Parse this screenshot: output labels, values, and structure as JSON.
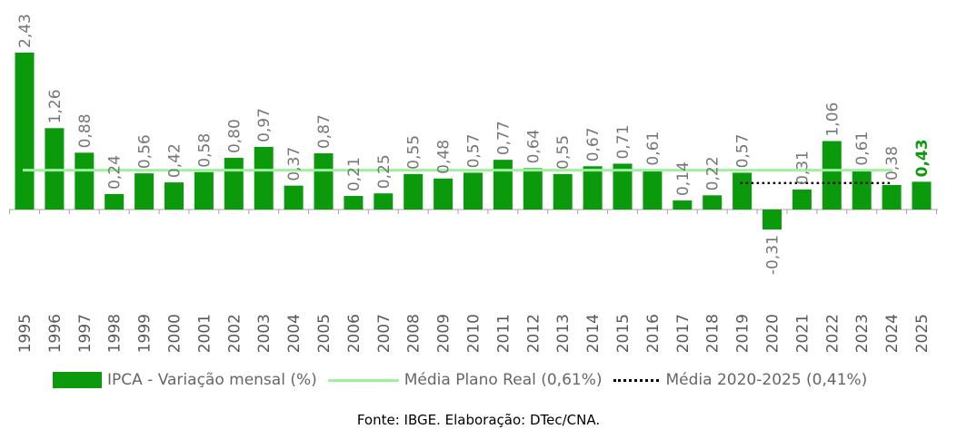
{
  "chart_data": {
    "type": "bar",
    "categories": [
      "1995",
      "1996",
      "1997",
      "1998",
      "1999",
      "2000",
      "2001",
      "2002",
      "2003",
      "2004",
      "2005",
      "2006",
      "2007",
      "2008",
      "2009",
      "2010",
      "2011",
      "2012",
      "2013",
      "2014",
      "2015",
      "2016",
      "2017",
      "2018",
      "2019",
      "2020",
      "2021",
      "2022",
      "2023",
      "2024",
      "2025"
    ],
    "values": [
      2.43,
      1.26,
      0.88,
      0.24,
      0.56,
      0.42,
      0.58,
      0.8,
      0.97,
      0.37,
      0.87,
      0.21,
      0.25,
      0.55,
      0.48,
      0.57,
      0.77,
      0.64,
      0.55,
      0.67,
      0.71,
      0.61,
      0.14,
      0.22,
      0.57,
      -0.31,
      0.31,
      1.06,
      0.61,
      0.38,
      0.43
    ],
    "value_labels": [
      "2,43",
      "1,26",
      "0,88",
      "0,24",
      "0,56",
      "0,42",
      "0,58",
      "0,80",
      "0,97",
      "0,37",
      "0,87",
      "0,21",
      "0,25",
      "0,55",
      "0,48",
      "0,57",
      "0,77",
      "0,64",
      "0,55",
      "0,67",
      "0,71",
      "0,61",
      "0,14",
      "0,22",
      "0,57",
      "-0,31",
      "0,31",
      "1,06",
      "0,61",
      "0,38",
      "0,43"
    ],
    "highlight_index": 30,
    "series": [
      {
        "name": "IPCA - Variação mensal (%)",
        "kind": "bar",
        "color": "#0b9a0b"
      },
      {
        "name": "Média Plano Real (0,61%)",
        "kind": "line",
        "value": 0.61,
        "span": [
          0,
          29
        ],
        "color": "#9ff09f"
      },
      {
        "name": "Média 2020-2025 (0,41%)",
        "kind": "dotted-line",
        "value": 0.41,
        "span": [
          24,
          29
        ],
        "color": "#000000"
      }
    ],
    "colors": {
      "bar": "#0b9a0b",
      "label": "#767676",
      "highlight_label": "#0b9a0b",
      "axis": "#a6a6a6"
    },
    "grid": false,
    "legend_position": "bottom"
  },
  "legend": {
    "bar_label": "IPCA - Variação mensal (%)",
    "line_label": "Média Plano Real (0,61%)",
    "dotted_label": "Média 2020-2025 (0,41%)"
  },
  "source": "Fonte: IBGE. Elaboração: DTec/CNA."
}
